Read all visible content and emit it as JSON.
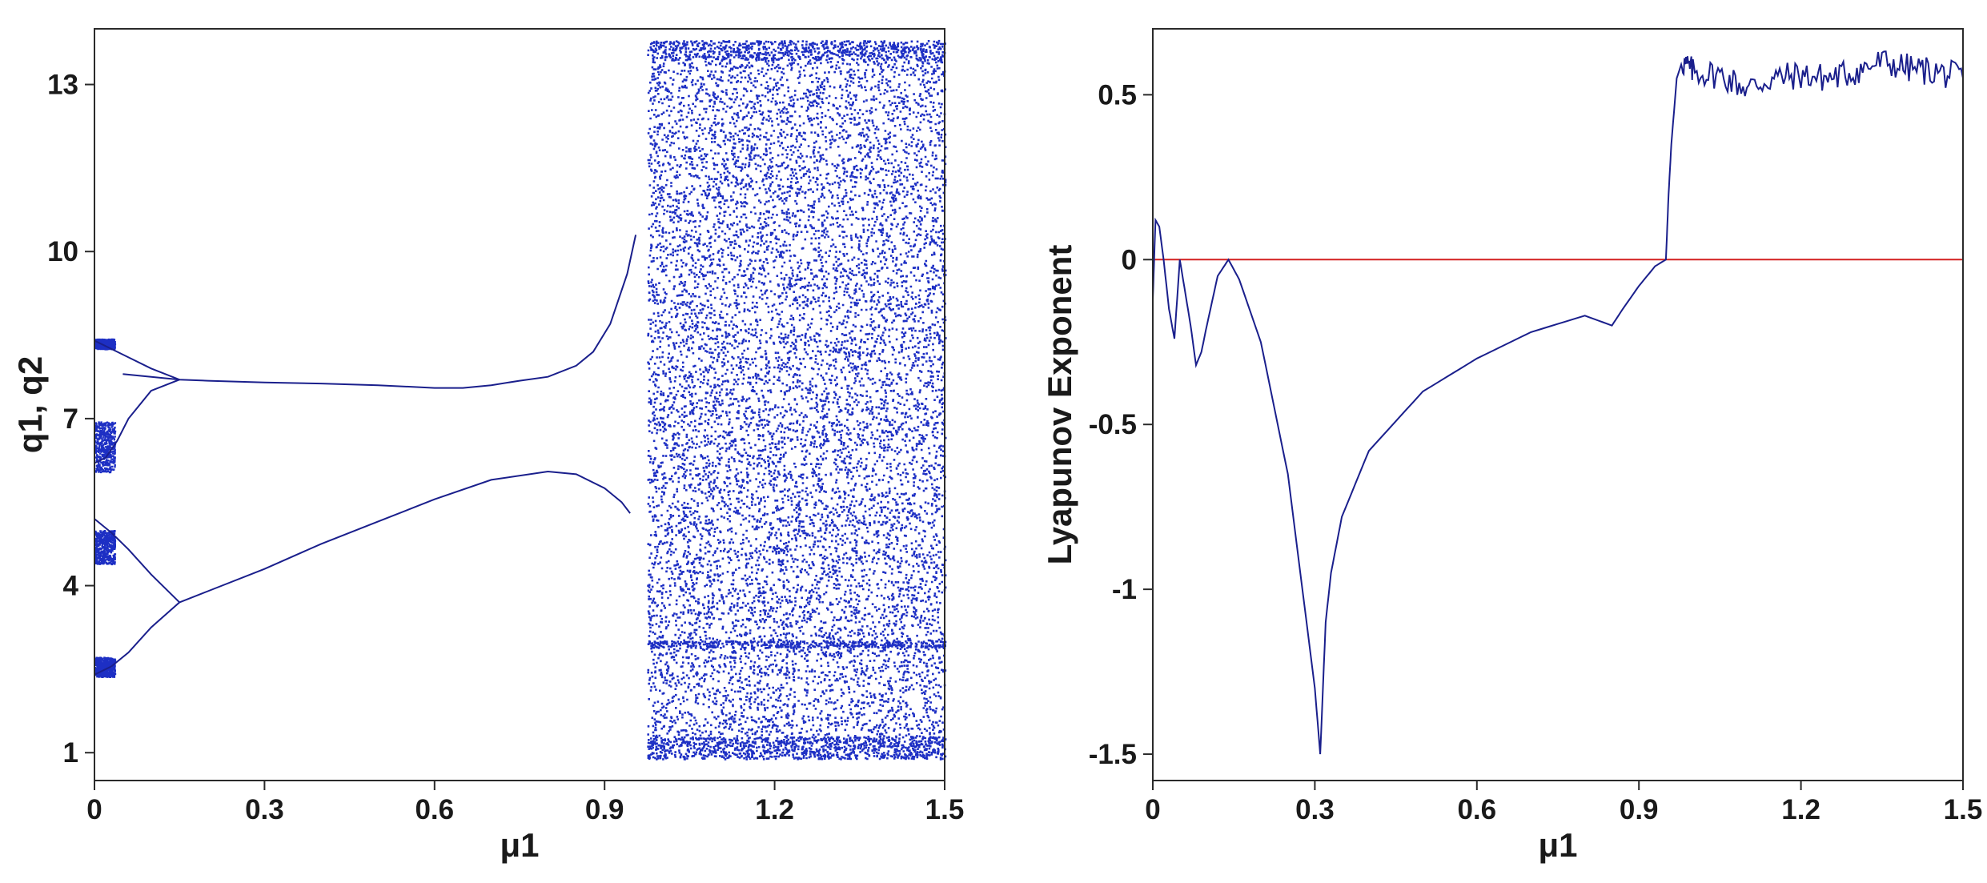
{
  "colors": {
    "series": "#1a1f8c",
    "bifurcation": "#1d2fc4",
    "zero_line": "#d42020",
    "axis": "#2a2a2a"
  },
  "chart_data": [
    {
      "type": "scatter",
      "title": "",
      "xlabel": "μ1",
      "ylabel": "q1, q2",
      "xlim": [
        0,
        1.5
      ],
      "ylim": [
        0.5,
        14
      ],
      "x_ticks": [
        0,
        0.3,
        0.6,
        0.9,
        1.2,
        1.5
      ],
      "x_tick_labels": [
        "0",
        "0.3",
        "0.6",
        "0.9",
        "1.2",
        "1.5"
      ],
      "y_ticks": [
        1,
        4,
        7,
        10,
        13
      ],
      "y_tick_labels": [
        "1",
        "4",
        "7",
        "10",
        "13"
      ],
      "grid": false,
      "series": [
        {
          "branch_upper": [
            [
              0.05,
              7.8
            ],
            [
              0.1,
              7.75
            ],
            [
              0.15,
              7.7
            ],
            [
              0.2,
              7.68
            ],
            [
              0.3,
              7.65
            ],
            [
              0.4,
              7.63
            ],
            [
              0.5,
              7.6
            ],
            [
              0.6,
              7.55
            ],
            [
              0.65,
              7.55
            ],
            [
              0.7,
              7.6
            ],
            [
              0.75,
              7.68
            ],
            [
              0.8,
              7.75
            ],
            [
              0.85,
              7.95
            ],
            [
              0.88,
              8.2
            ],
            [
              0.91,
              8.7
            ],
            [
              0.94,
              9.6
            ],
            [
              0.955,
              10.3
            ]
          ],
          "branch_lower": [
            [
              0.15,
              3.7
            ],
            [
              0.2,
              3.9
            ],
            [
              0.3,
              4.3
            ],
            [
              0.4,
              4.75
            ],
            [
              0.5,
              5.15
            ],
            [
              0.6,
              5.55
            ],
            [
              0.7,
              5.9
            ],
            [
              0.8,
              6.05
            ],
            [
              0.85,
              6.0
            ],
            [
              0.9,
              5.75
            ],
            [
              0.93,
              5.5
            ],
            [
              0.945,
              5.3
            ]
          ],
          "period4_upper": [
            [
              0.0,
              8.4
            ],
            [
              0.03,
              8.25
            ],
            [
              0.06,
              8.1
            ],
            [
              0.1,
              7.9
            ],
            [
              0.15,
              7.7
            ],
            [
              0.1,
              7.5
            ],
            [
              0.06,
              7.0
            ],
            [
              0.04,
              6.6
            ],
            [
              0.02,
              6.3
            ],
            [
              0.0,
              6.2
            ]
          ],
          "period4_lower": [
            [
              0.0,
              5.2
            ],
            [
              0.03,
              4.95
            ],
            [
              0.06,
              4.65
            ],
            [
              0.1,
              4.2
            ],
            [
              0.15,
              3.7
            ],
            [
              0.1,
              3.25
            ],
            [
              0.06,
              2.8
            ],
            [
              0.03,
              2.55
            ],
            [
              0.0,
              2.4
            ]
          ],
          "chaotic_region": {
            "x": [
              0.975,
              1.5
            ],
            "y": [
              0.9,
              13.8
            ]
          }
        }
      ]
    },
    {
      "type": "line",
      "title": "",
      "xlabel": "μ1",
      "ylabel": "Lyapunov Exponent",
      "xlim": [
        0,
        1.5
      ],
      "ylim": [
        -1.58,
        0.7
      ],
      "x_ticks": [
        0,
        0.3,
        0.6,
        0.9,
        1.2,
        1.5
      ],
      "x_tick_labels": [
        "0",
        "0.3",
        "0.6",
        "0.9",
        "1.2",
        "1.5"
      ],
      "y_ticks": [
        0.5,
        0,
        -0.5,
        -1,
        -1.5
      ],
      "y_tick_labels": [
        "0.5",
        "0",
        "-0.5",
        "-1",
        "-1.5"
      ],
      "grid": false,
      "reference_line": {
        "y": 0
      },
      "series": [
        {
          "x": [
            0,
            0.005,
            0.012,
            0.02,
            0.03,
            0.04,
            0.05,
            0.06,
            0.07,
            0.08,
            0.09,
            0.1,
            0.12,
            0.14,
            0.16,
            0.2,
            0.25,
            0.3,
            0.31,
            0.32,
            0.33,
            0.35,
            0.4,
            0.5,
            0.6,
            0.7,
            0.8,
            0.85,
            0.87,
            0.9,
            0.93,
            0.95,
            0.955,
            0.96,
            0.97,
            0.98,
            1.0,
            1.05,
            1.1,
            1.15,
            1.2,
            1.25,
            1.3,
            1.35,
            1.4,
            1.45,
            1.5
          ],
          "values": [
            -0.12,
            0.12,
            0.1,
            0.0,
            -0.15,
            -0.24,
            0.0,
            -0.1,
            -0.2,
            -0.32,
            -0.28,
            -0.2,
            -0.05,
            0.0,
            -0.06,
            -0.25,
            -0.65,
            -1.3,
            -1.5,
            -1.1,
            -0.95,
            -0.78,
            -0.58,
            -0.4,
            -0.3,
            -0.22,
            -0.17,
            -0.2,
            -0.15,
            -0.08,
            -0.02,
            0.0,
            0.2,
            0.35,
            0.55,
            0.6,
            0.57,
            0.56,
            0.52,
            0.55,
            0.56,
            0.55,
            0.57,
            0.6,
            0.58,
            0.57,
            0.55
          ]
        }
      ]
    }
  ]
}
